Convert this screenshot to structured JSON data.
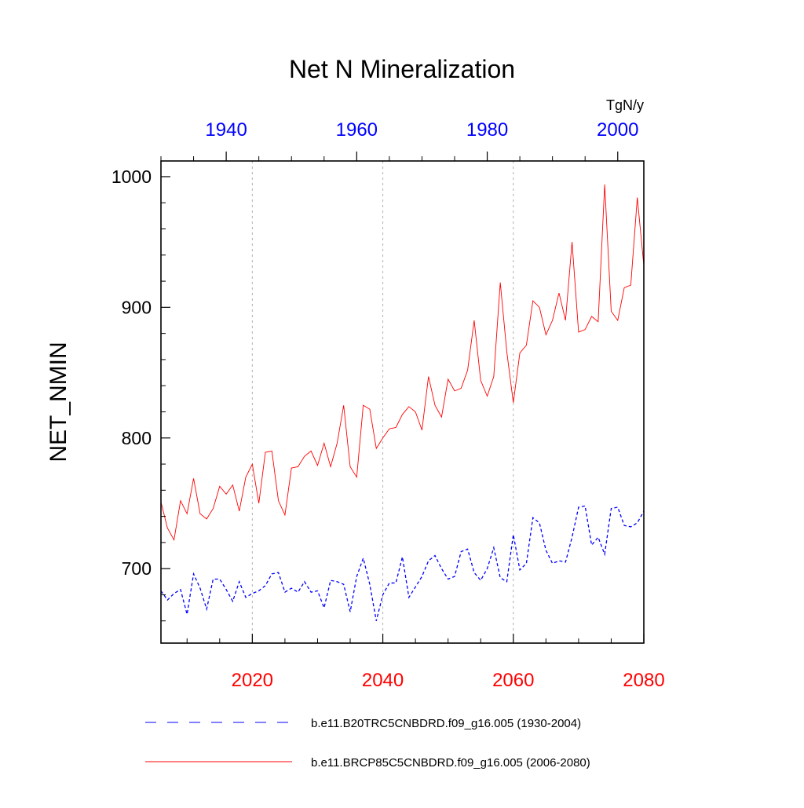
{
  "chart_data": {
    "type": "line",
    "title": "Net N Mineralization",
    "ylabel": "NET_NMIN",
    "units": "TgN/y",
    "ylim": [
      643,
      1012
    ],
    "yticks": [
      700,
      800,
      900,
      1000
    ],
    "bottom_axis": {
      "xlim": [
        2006,
        2080
      ],
      "ticks": [
        2020,
        2040,
        2060,
        2080
      ],
      "color": "#ff0000"
    },
    "top_axis": {
      "xlim": [
        1930,
        2004
      ],
      "ticks": [
        1940,
        1960,
        1980,
        2000
      ],
      "color": "#0000ff"
    },
    "gridlines_at": [
      2020,
      2040,
      2060
    ],
    "series": [
      {
        "name": "b.e11.B20TRC5CNBDRD.f09_g16.005 (1930-2004)",
        "color": "#0000ff",
        "dash": "dashed",
        "x_start": 1930,
        "values": [
          683,
          676,
          681,
          684,
          665,
          696,
          685,
          669,
          692,
          692,
          684,
          675,
          690,
          678,
          681,
          683,
          687,
          696,
          697,
          682,
          685,
          682,
          690,
          682,
          683,
          670,
          691,
          690,
          688,
          667,
          694,
          708,
          688,
          660,
          680,
          689,
          689,
          709,
          678,
          686,
          694,
          706,
          710,
          700,
          692,
          694,
          713,
          715,
          697,
          691,
          700,
          716,
          693,
          690,
          726,
          699,
          704,
          739,
          735,
          714,
          704,
          706,
          705,
          724,
          747,
          748,
          718,
          724,
          711,
          746,
          747,
          733,
          732,
          735,
          744
        ]
      },
      {
        "name": "b.e11.BRCP85C5CNBDRD.f09_g16.005 (2006-2080)",
        "color": "#ff0000",
        "dash": "solid",
        "x_start": 2006,
        "values": [
          751,
          731,
          722,
          752,
          742,
          769,
          742,
          738,
          746,
          763,
          757,
          764,
          744,
          770,
          780,
          750,
          789,
          790,
          752,
          741,
          777,
          778,
          786,
          790,
          779,
          796,
          778,
          796,
          825,
          778,
          770,
          825,
          822,
          792,
          800,
          807,
          808,
          818,
          824,
          820,
          806,
          847,
          825,
          816,
          845,
          836,
          838,
          852,
          890,
          844,
          832,
          847,
          919,
          866,
          827,
          865,
          871,
          905,
          900,
          879,
          890,
          911,
          890,
          950,
          881,
          883,
          893,
          889,
          994,
          897,
          890,
          915,
          917,
          984,
          932
        ]
      }
    ],
    "legend": [
      {
        "label": "b.e11.B20TRC5CNBDRD.f09_g16.005 (1930-2004)",
        "color": "#0000ff",
        "dash": "dashed"
      },
      {
        "label": "b.e11.BRCP85C5CNBDRD.f09_g16.005 (2006-2080)",
        "color": "#ff0000",
        "dash": "solid"
      }
    ]
  }
}
